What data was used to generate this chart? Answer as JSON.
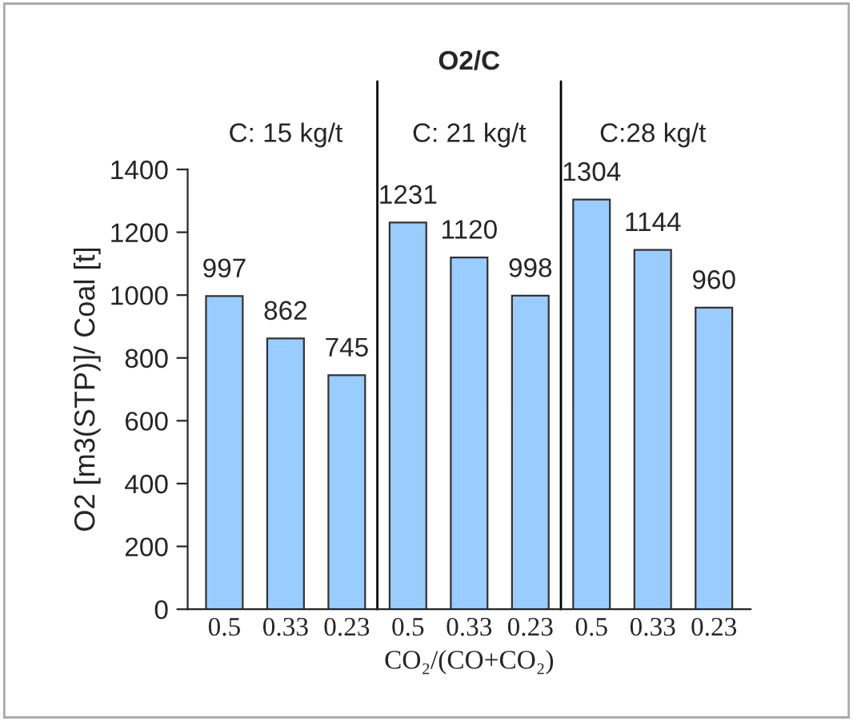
{
  "chart_data": {
    "type": "bar",
    "title": "O2/C",
    "xlabel": "CO₂/(CO+CO₂)",
    "ylabel": "O2 [m3(STP)]/ Coal [t]",
    "categories": [
      "0.5",
      "0.33",
      "0.23",
      "0.5",
      "0.33",
      "0.23",
      "0.5",
      "0.33",
      "0.23"
    ],
    "values": [
      997,
      862,
      745,
      1231,
      1120,
      998,
      1304,
      1144,
      960
    ],
    "color": "#99ccff",
    "data_labels": true,
    "ylim": [
      0,
      1400
    ],
    "yticks": [
      0,
      200,
      400,
      600,
      800,
      1000,
      1200,
      1400
    ],
    "annotations": [
      "C: 15 kg/t",
      "C: 21 kg/t",
      "C:28 kg/t"
    ],
    "grid": false,
    "legend": false
  }
}
